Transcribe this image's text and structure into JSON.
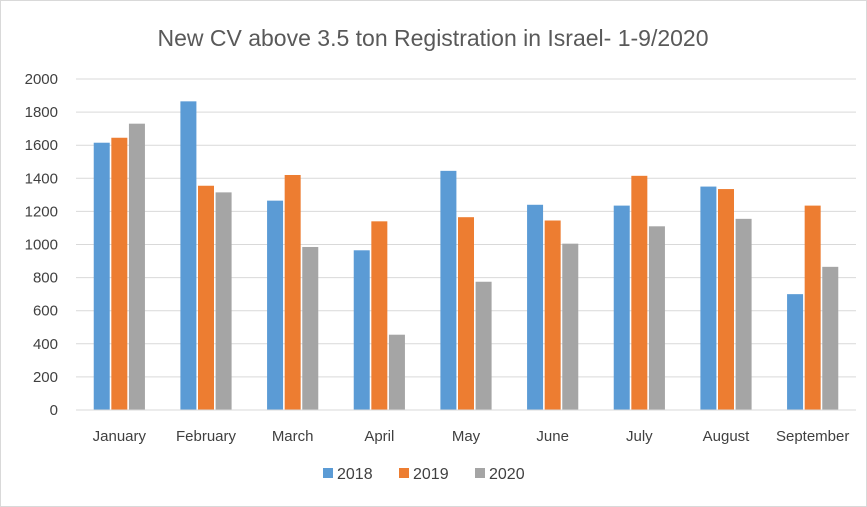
{
  "chart_data": {
    "type": "bar",
    "title": "New CV above 3.5 ton Registration in Israel- 1-9/2020",
    "xlabel": "",
    "ylabel": "",
    "categories": [
      "January",
      "February",
      "March",
      "April",
      "May",
      "June",
      "July",
      "August",
      "September"
    ],
    "series": [
      {
        "name": "2018",
        "color": "#5b9bd5",
        "values": [
          1615,
          1865,
          1265,
          965,
          1445,
          1240,
          1235,
          1350,
          700
        ]
      },
      {
        "name": "2019",
        "color": "#ed7d31",
        "values": [
          1645,
          1355,
          1420,
          1140,
          1165,
          1145,
          1415,
          1335,
          1235
        ]
      },
      {
        "name": "2020",
        "color": "#a5a5a5",
        "values": [
          1730,
          1315,
          985,
          455,
          775,
          1005,
          1110,
          1155,
          865
        ]
      }
    ],
    "ylim": [
      0,
      2000
    ],
    "yticks": [
      0,
      200,
      400,
      600,
      800,
      1000,
      1200,
      1400,
      1600,
      1800,
      2000
    ],
    "grid": true,
    "legend_position": "bottom"
  }
}
